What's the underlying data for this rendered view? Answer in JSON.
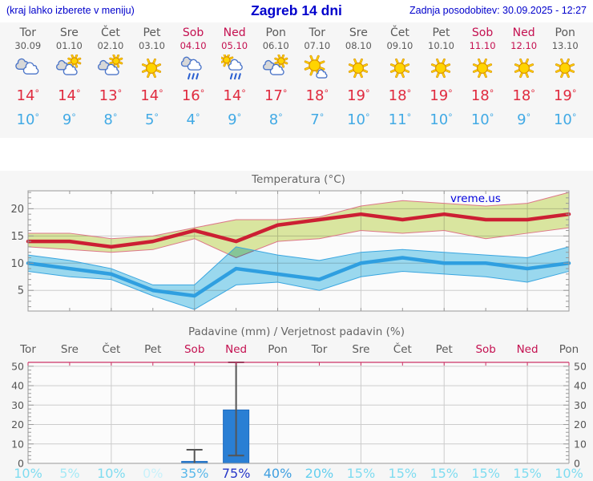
{
  "header": {
    "left_note": "(kraj lahko izberete v meniju)",
    "title": "Zagreb 14 dni",
    "last_update": "Zadnja posodobitev: 30.09.2025 - 12:27"
  },
  "degree_symbol": "°",
  "colors": {
    "header_blue": "#0000cc",
    "weekday": "#5a5a5a",
    "weekend": "#c41050",
    "high_temp": "#e02b3f",
    "low_temp": "#42aae5",
    "strip_bg": "#f6f6f6",
    "chart_bg": "#f6f6f6",
    "plot_bg": "#fbfbfb",
    "grid": "#cccccc",
    "axis": "#999999",
    "tick_label": "#555555",
    "title": "#666666",
    "precip_top_border": "#cc3366",
    "watermark_blue": "#0000dd",
    "sun_fill": "#ffd400",
    "sun_stroke": "#d89000",
    "cloud_outline": "#4a74c8",
    "cloud_gray": "#d8d8d8",
    "cloud_white": "#ffffff",
    "rain_blue": "#2a5fd0",
    "whisker": "#555555"
  },
  "days": [
    {
      "name": "Tor",
      "date": "30.09",
      "weekend": false,
      "icon": "cloudy",
      "high": 14,
      "low": 10
    },
    {
      "name": "Sre",
      "date": "01.10",
      "weekend": false,
      "icon": "partly-sunny",
      "high": 14,
      "low": 9
    },
    {
      "name": "Čet",
      "date": "02.10",
      "weekend": false,
      "icon": "partly-sunny",
      "high": 13,
      "low": 8
    },
    {
      "name": "Pet",
      "date": "03.10",
      "weekend": false,
      "icon": "sunny",
      "high": 14,
      "low": 5
    },
    {
      "name": "Sob",
      "date": "04.10",
      "weekend": true,
      "icon": "rain",
      "high": 16,
      "low": 4
    },
    {
      "name": "Ned",
      "date": "05.10",
      "weekend": true,
      "icon": "sun-rain",
      "high": 14,
      "low": 9
    },
    {
      "name": "Pon",
      "date": "06.10",
      "weekend": false,
      "icon": "partly-sunny",
      "high": 17,
      "low": 8
    },
    {
      "name": "Tor",
      "date": "07.10",
      "weekend": false,
      "icon": "mostly-sunny",
      "high": 18,
      "low": 7
    },
    {
      "name": "Sre",
      "date": "08.10",
      "weekend": false,
      "icon": "sunny",
      "high": 19,
      "low": 10
    },
    {
      "name": "Čet",
      "date": "09.10",
      "weekend": false,
      "icon": "sunny",
      "high": 18,
      "low": 11
    },
    {
      "name": "Pet",
      "date": "10.10",
      "weekend": false,
      "icon": "sunny",
      "high": 19,
      "low": 10
    },
    {
      "name": "Sob",
      "date": "11.10",
      "weekend": true,
      "icon": "sunny",
      "high": 18,
      "low": 10
    },
    {
      "name": "Ned",
      "date": "12.10",
      "weekend": true,
      "icon": "sunny",
      "high": 18,
      "low": 9
    },
    {
      "name": "Pon",
      "date": "13.10",
      "weekend": false,
      "icon": "sunny",
      "high": 19,
      "low": 10
    }
  ],
  "chart_data": [
    {
      "type": "line",
      "title": "Temperatura (°C)",
      "watermark": "vreme.us",
      "categories": [
        "Tor 30.09",
        "Sre 01.10",
        "Čet 02.10",
        "Pet 03.10",
        "Sob 04.10",
        "Ned 05.10",
        "Pon 06.10",
        "Tor 07.10",
        "Sre 08.10",
        "Čet 09.10",
        "Pet 10.10",
        "Sob 11.10",
        "Ned 12.10",
        "Pon 13.10"
      ],
      "ylim": [
        1.2,
        23.3
      ],
      "yticks": [
        5,
        10,
        15,
        20
      ],
      "grid": true,
      "gridline_day_indices": [
        2,
        4,
        6,
        8,
        10,
        12
      ],
      "series": [
        {
          "name": "max temperature",
          "color": "#cc1f33",
          "values": [
            14,
            14,
            13,
            14,
            16,
            14,
            17,
            18,
            19,
            18,
            19,
            18,
            18,
            19
          ],
          "band_upper": [
            15.5,
            15.5,
            14.5,
            15,
            16.5,
            18,
            18,
            18.5,
            20.5,
            21.5,
            21,
            20.5,
            21,
            23
          ],
          "band_lower": [
            13,
            12.5,
            12,
            12.5,
            14.5,
            11,
            14,
            14.5,
            16,
            15.5,
            16,
            14.5,
            15.5,
            16.5
          ],
          "band_fill": "#dde9a2",
          "band_edge": "#dd7788"
        },
        {
          "name": "min temperature",
          "color": "#2f9fe0",
          "values": [
            10,
            9,
            8,
            5,
            4,
            9,
            8,
            7,
            10,
            11,
            10,
            10,
            9,
            10
          ],
          "band_upper": [
            11.5,
            10.5,
            9,
            6,
            6,
            13,
            11.5,
            10.5,
            12,
            12.5,
            12,
            11.5,
            11,
            13
          ],
          "band_lower": [
            8.5,
            7.5,
            7,
            4,
            1.5,
            6,
            6.5,
            5,
            7.5,
            8.5,
            8,
            7.5,
            6.5,
            8.5
          ],
          "band_fill": "#9ddcf2",
          "band_edge": "#3aa6e0"
        }
      ]
    },
    {
      "type": "bar",
      "title": "Padavine (mm) / Verjetnost padavin (%)",
      "categories": [
        "Tor",
        "Sre",
        "Čet",
        "Pet",
        "Sob",
        "Ned",
        "Pon",
        "Tor",
        "Sre",
        "Čet",
        "Pet",
        "Sob",
        "Ned",
        "Pon"
      ],
      "values": [
        0,
        0,
        0,
        0,
        1,
        27.5,
        0,
        0,
        0,
        0,
        0,
        0,
        0,
        0
      ],
      "whisker_low": [
        null,
        null,
        null,
        null,
        0,
        4,
        null,
        null,
        null,
        null,
        null,
        null,
        null,
        null
      ],
      "whisker_high": [
        null,
        null,
        null,
        null,
        7,
        52,
        null,
        null,
        null,
        null,
        null,
        null,
        null,
        null
      ],
      "probabilities": [
        "10%",
        "5%",
        "10%",
        "0%",
        "35%",
        "75%",
        "40%",
        "20%",
        "15%",
        "15%",
        "15%",
        "15%",
        "15%",
        "10%"
      ],
      "prob_colors": [
        "#7fdcf0",
        "#a5e9f6",
        "#7fdcf0",
        "#c9f1fa",
        "#5ab8ea",
        "#2637c8",
        "#3f9fe0",
        "#64cfee",
        "#7fdcf0",
        "#7fdcf0",
        "#7fdcf0",
        "#7fdcf0",
        "#7fdcf0",
        "#7fdcf0"
      ],
      "ylim": [
        0,
        52
      ],
      "yticks": [
        0,
        10,
        20,
        30,
        40,
        50
      ],
      "grid": true,
      "gridline_day_indices": [
        2,
        4,
        6,
        8,
        10,
        12
      ],
      "bar_color": "#2a7fd4"
    }
  ]
}
